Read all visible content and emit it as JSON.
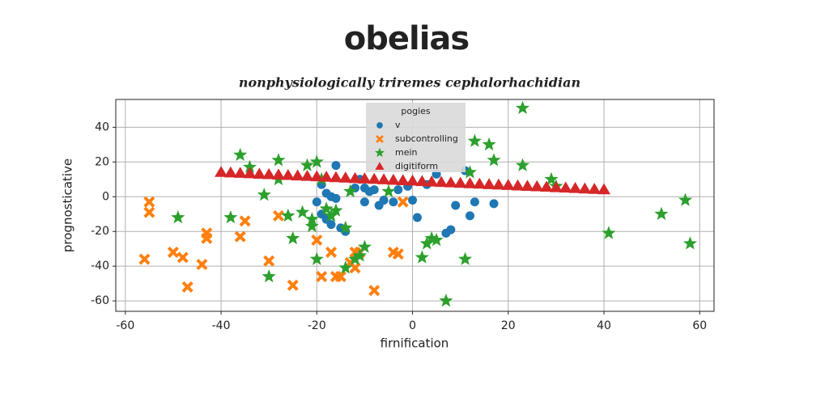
{
  "chart_data": {
    "type": "scatter",
    "title": "obelias",
    "subtitle": "nonphysiologically triremes cephalorhachidian",
    "x_label": "firnification",
    "y_label": "prognosticative",
    "xlim": [
      -62,
      63
    ],
    "ylim": [
      -66,
      56
    ],
    "xticks": [
      -60,
      -40,
      -20,
      0,
      20,
      40,
      60
    ],
    "yticks": [
      -60,
      -40,
      -20,
      0,
      20,
      40
    ],
    "grid": true,
    "legend_title": "pogies",
    "legend_position": "upper center",
    "series": [
      {
        "name": "v",
        "color": "#1f77b4",
        "marker": "circle",
        "x": [
          -16,
          -19,
          -18,
          -17,
          -16,
          -20,
          -19,
          -18,
          -17,
          -15,
          -14,
          -12,
          -10,
          -9,
          -8,
          -7,
          -6,
          -4,
          -3,
          -1,
          0,
          1,
          3,
          5,
          7,
          8,
          9,
          11,
          12,
          13,
          17,
          -10,
          -11
        ],
        "values": [
          18,
          7,
          2,
          0,
          -1,
          -3,
          -10,
          -13,
          -16,
          -18,
          -20,
          5,
          5,
          3,
          4,
          -5,
          -2,
          -3,
          4,
          6,
          -2,
          -12,
          7,
          13,
          -21,
          -19,
          -5,
          15,
          -11,
          -3,
          -4,
          -3,
          10
        ]
      },
      {
        "name": "subcontrolling",
        "color": "#ff7f0e",
        "marker": "x",
        "x": [
          -56,
          -55,
          -55,
          -50,
          -48,
          -47,
          -44,
          -43,
          -43,
          -36,
          -35,
          -30,
          -28,
          -25,
          -20,
          -19,
          -17,
          -16,
          -13,
          -12,
          -11,
          -12,
          -8,
          -4,
          -3,
          -2,
          -15
        ],
        "values": [
          -36,
          -3,
          -9,
          -32,
          -35,
          -52,
          -39,
          -21,
          -24,
          -23,
          -14,
          -37,
          -11,
          -51,
          -25,
          -46,
          -32,
          -46,
          -38,
          -32,
          -32,
          -41,
          -54,
          -32,
          -33,
          -3,
          -46
        ]
      },
      {
        "name": "mein",
        "color": "#2ca02c",
        "marker": "star",
        "x": [
          -49,
          -38,
          -36,
          -34,
          -31,
          -28,
          -28,
          -26,
          -25,
          -23,
          -30,
          -22,
          -21,
          -21,
          -20,
          -20,
          -19,
          -18,
          -17,
          -16,
          -14,
          -14,
          -12,
          -11,
          -13,
          -10,
          -5,
          2,
          3,
          4,
          5,
          7,
          11,
          12,
          16,
          17,
          23,
          23,
          29,
          30,
          41,
          52,
          57,
          58,
          13
        ],
        "values": [
          -12,
          -12,
          24,
          17,
          1,
          21,
          10,
          -11,
          -24,
          -9,
          -46,
          18,
          -13,
          -17,
          20,
          -36,
          10,
          -7,
          -11,
          -8,
          -18,
          -41,
          -36,
          -34,
          3,
          -29,
          3,
          -35,
          -27,
          -24,
          -25,
          -60,
          -36,
          14,
          30,
          21,
          51,
          18,
          10,
          6,
          -21,
          -10,
          -2,
          -27,
          32
        ]
      },
      {
        "name": "digitiform",
        "color": "#d62728",
        "marker": "triangle",
        "x": [
          -40,
          -38,
          -36,
          -34,
          -32,
          -30,
          -28,
          -26,
          -24,
          -22,
          -20,
          -18,
          -16,
          -14,
          -12,
          -10,
          -8,
          -6,
          -4,
          -2,
          0,
          2,
          4,
          6,
          8,
          10,
          12,
          14,
          16,
          18,
          20,
          22,
          24,
          26,
          28,
          30,
          32,
          34,
          36,
          38,
          40
        ],
        "values": [
          14,
          13.75,
          13.5,
          13.25,
          13,
          12.75,
          12.5,
          12.25,
          12,
          11.75,
          11.5,
          11.25,
          11,
          10.75,
          10.5,
          10.25,
          10,
          9.75,
          9.5,
          9.25,
          9,
          8.75,
          8.5,
          8.25,
          8,
          7.75,
          7.5,
          7.25,
          7,
          6.75,
          6.5,
          6.25,
          6,
          5.75,
          5.5,
          5.25,
          5,
          4.75,
          4.5,
          4.25,
          4
        ]
      }
    ]
  }
}
